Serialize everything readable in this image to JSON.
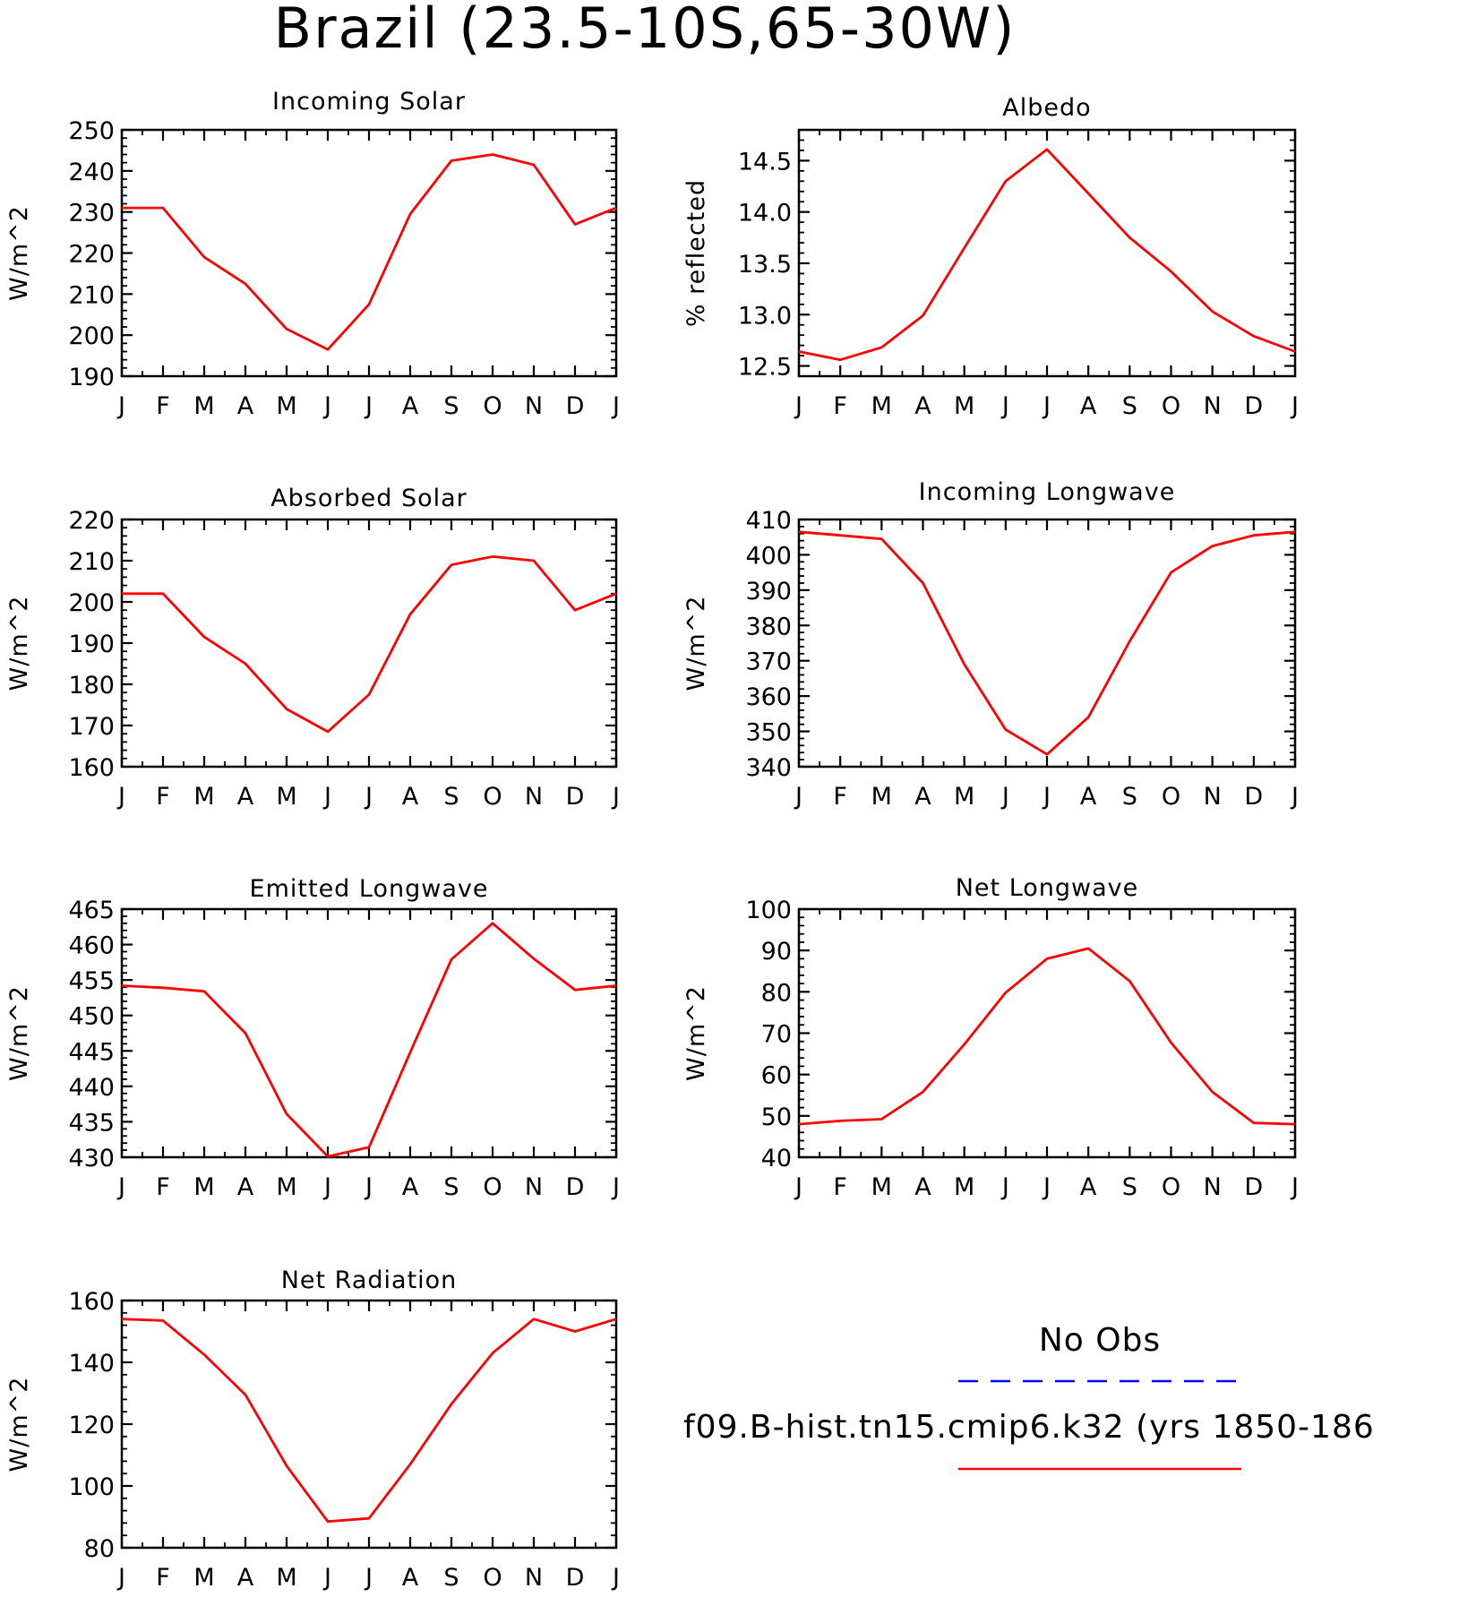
{
  "title": "Brazil (23.5-10S,65-30W)",
  "colors": {
    "model": "#ff0000",
    "obs": "#0000ff",
    "axis": "#000000"
  },
  "legend": {
    "obs_label": "No Obs",
    "model_label": "f09.B-hist.tn15.cmip6.k32 (yrs 1850-186"
  },
  "chart_data": [
    {
      "type": "line",
      "title": "Incoming Solar",
      "ylabel": "W/m^2",
      "categories": [
        "J",
        "F",
        "M",
        "A",
        "M",
        "J",
        "J",
        "A",
        "S",
        "O",
        "N",
        "D",
        "J"
      ],
      "ylim": [
        190,
        250
      ],
      "yticks": [
        "190",
        "200",
        "210",
        "220",
        "230",
        "240",
        "250"
      ],
      "series": [
        {
          "values": [
            231,
            231,
            219,
            212.5,
            201.5,
            196.5,
            207.5,
            229.5,
            242.5,
            244,
            241.5,
            227,
            231
          ]
        }
      ]
    },
    {
      "type": "line",
      "title": "Albedo",
      "ylabel": "% reflected",
      "categories": [
        "J",
        "F",
        "M",
        "A",
        "M",
        "J",
        "J",
        "A",
        "S",
        "O",
        "N",
        "D",
        "J"
      ],
      "ylim": [
        12.4,
        14.8
      ],
      "yticks": [
        "12.5",
        "13.0",
        "13.5",
        "14.0",
        "14.5"
      ],
      "series": [
        {
          "values": [
            12.64,
            12.56,
            12.68,
            12.99,
            13.65,
            14.3,
            14.61,
            14.18,
            13.75,
            13.42,
            13.03,
            12.79,
            12.64
          ]
        }
      ]
    },
    {
      "type": "line",
      "title": "Absorbed Solar",
      "ylabel": "W/m^2",
      "categories": [
        "J",
        "F",
        "M",
        "A",
        "M",
        "J",
        "J",
        "A",
        "S",
        "O",
        "N",
        "D",
        "J"
      ],
      "ylim": [
        160,
        220
      ],
      "yticks": [
        "160",
        "170",
        "180",
        "190",
        "200",
        "210",
        "220"
      ],
      "series": [
        {
          "values": [
            202,
            202,
            191.5,
            185,
            174,
            168.5,
            177.5,
            197,
            209,
            211,
            210,
            198,
            202
          ]
        }
      ]
    },
    {
      "type": "line",
      "title": "Incoming Longwave",
      "ylabel": "W/m^2",
      "categories": [
        "J",
        "F",
        "M",
        "A",
        "M",
        "J",
        "J",
        "A",
        "S",
        "O",
        "N",
        "D",
        "J"
      ],
      "ylim": [
        340,
        410
      ],
      "yticks": [
        "340",
        "350",
        "360",
        "370",
        "380",
        "390",
        "400",
        "410"
      ],
      "series": [
        {
          "values": [
            406.5,
            405.5,
            404.5,
            392,
            369,
            350.5,
            343.5,
            354,
            375.5,
            395,
            402.5,
            405.5,
            406.5
          ]
        }
      ]
    },
    {
      "type": "line",
      "title": "Emitted Longwave",
      "ylabel": "W/m^2",
      "categories": [
        "J",
        "F",
        "M",
        "A",
        "M",
        "J",
        "J",
        "A",
        "S",
        "O",
        "N",
        "D",
        "J"
      ],
      "ylim": [
        430,
        465
      ],
      "yticks": [
        "430",
        "435",
        "440",
        "445",
        "450",
        "455",
        "460",
        "465"
      ],
      "series": [
        {
          "values": [
            454.2,
            453.9,
            453.4,
            447.5,
            436.1,
            430.1,
            431.4,
            444.8,
            457.9,
            463,
            458,
            453.6,
            454.2
          ]
        }
      ]
    },
    {
      "type": "line",
      "title": "Net Longwave",
      "ylabel": "W/m^2",
      "categories": [
        "J",
        "F",
        "M",
        "A",
        "M",
        "J",
        "J",
        "A",
        "S",
        "O",
        "N",
        "D",
        "J"
      ],
      "ylim": [
        40,
        100
      ],
      "yticks": [
        "40",
        "50",
        "60",
        "70",
        "80",
        "90",
        "100"
      ],
      "series": [
        {
          "values": [
            48,
            48.8,
            49.2,
            55.8,
            67.3,
            79.8,
            88,
            90.5,
            82.6,
            67.7,
            55.8,
            48.3,
            48
          ]
        }
      ]
    },
    {
      "type": "line",
      "title": "Net Radiation",
      "ylabel": "W/m^2",
      "categories": [
        "J",
        "F",
        "M",
        "A",
        "M",
        "J",
        "J",
        "A",
        "S",
        "O",
        "N",
        "D",
        "J"
      ],
      "ylim": [
        80,
        160
      ],
      "yticks": [
        "80",
        "100",
        "120",
        "140",
        "160"
      ],
      "series": [
        {
          "values": [
            154,
            153.5,
            142.5,
            129.5,
            106.5,
            88.5,
            89.5,
            107,
            126.5,
            143,
            154,
            150,
            154
          ]
        }
      ]
    }
  ]
}
